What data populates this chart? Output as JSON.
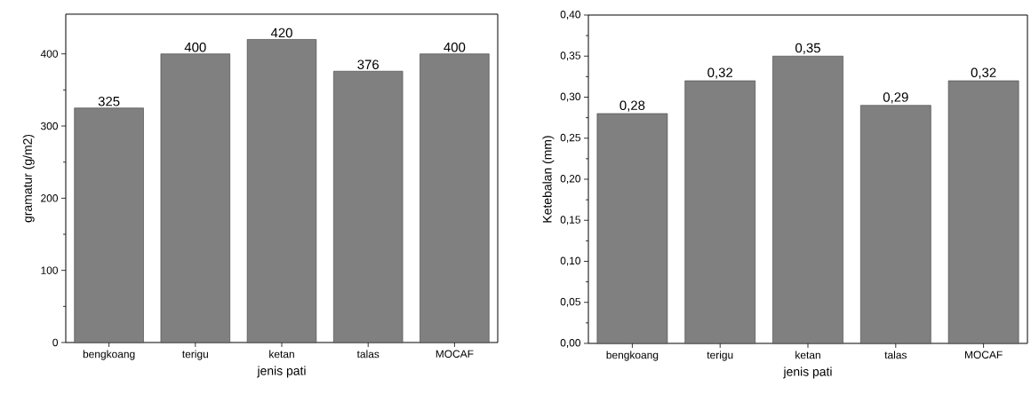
{
  "chart_data": [
    {
      "type": "bar",
      "categories": [
        "bengkoang",
        "terigu",
        "ketan",
        "talas",
        "MOCAF"
      ],
      "values": [
        325,
        400,
        420,
        376,
        400
      ],
      "value_labels": [
        "325",
        "400",
        "420",
        "376",
        "400"
      ],
      "color": "#808080",
      "xlabel": "jenis pati",
      "ylabel": "gramatur (g/m2)",
      "ylim": [
        0,
        455
      ],
      "yticks": [
        0,
        100,
        200,
        300,
        400
      ]
    },
    {
      "type": "bar",
      "categories": [
        "bengkoang",
        "terigu",
        "ketan",
        "talas",
        "MOCAF"
      ],
      "values": [
        0.28,
        0.32,
        0.35,
        0.29,
        0.32
      ],
      "value_labels": [
        "0,28",
        "0,32",
        "0,35",
        "0,29",
        "0,32"
      ],
      "color": "#808080",
      "xlabel": "jenis pati",
      "ylabel": "Ketebalan (mm)",
      "ylim": [
        0,
        0.4
      ],
      "yticks": [
        {
          "value": 0,
          "label": "0,00"
        },
        {
          "value": 0.05,
          "label": "0,05"
        },
        {
          "value": 0.1,
          "label": "0,10"
        },
        {
          "value": 0.15,
          "label": "0,15"
        },
        {
          "value": 0.2,
          "label": "0,20"
        },
        {
          "value": 0.25,
          "label": "0,25"
        },
        {
          "value": 0.3,
          "label": "0,30"
        },
        {
          "value": 0.35,
          "label": "0,35"
        },
        {
          "value": 0.4,
          "label": "0,40"
        }
      ]
    }
  ]
}
